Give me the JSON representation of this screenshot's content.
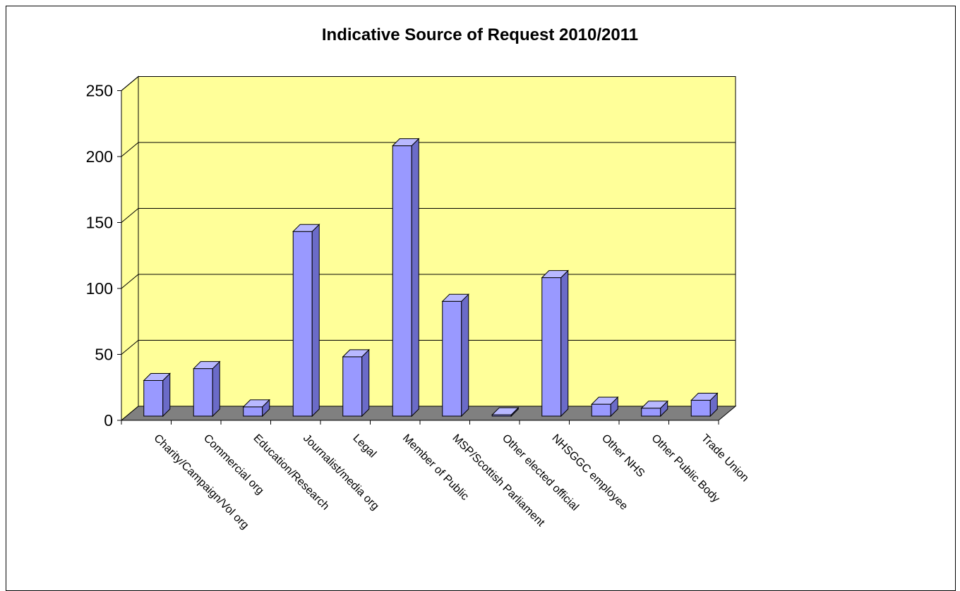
{
  "chart_data": {
    "type": "bar",
    "title": "Indicative Source of Request 2010/2011",
    "xlabel": "",
    "ylabel": "",
    "ylim": [
      0,
      250
    ],
    "yticks": [
      0,
      50,
      100,
      150,
      200,
      250
    ],
    "grid": true,
    "legend": "none",
    "categories": [
      "Charity/Campaign/Vol org",
      "Commercial org",
      "Education/Research",
      "Journalist/media org",
      "Legal",
      "Member of Public",
      "MSP/Scottish Parliament",
      "Other elected official",
      "NHSGGC employee",
      "Other NHS",
      "Other Public Body",
      "Trade Union"
    ],
    "values": [
      27,
      36,
      7,
      140,
      45,
      205,
      87,
      1,
      105,
      9,
      6,
      12
    ],
    "colors": {
      "bar_front": "#9999ff",
      "bar_top": "#b8b8ff",
      "bar_side": "#6b6bc8",
      "wall": "#ffff99",
      "floor": "#808080"
    }
  }
}
